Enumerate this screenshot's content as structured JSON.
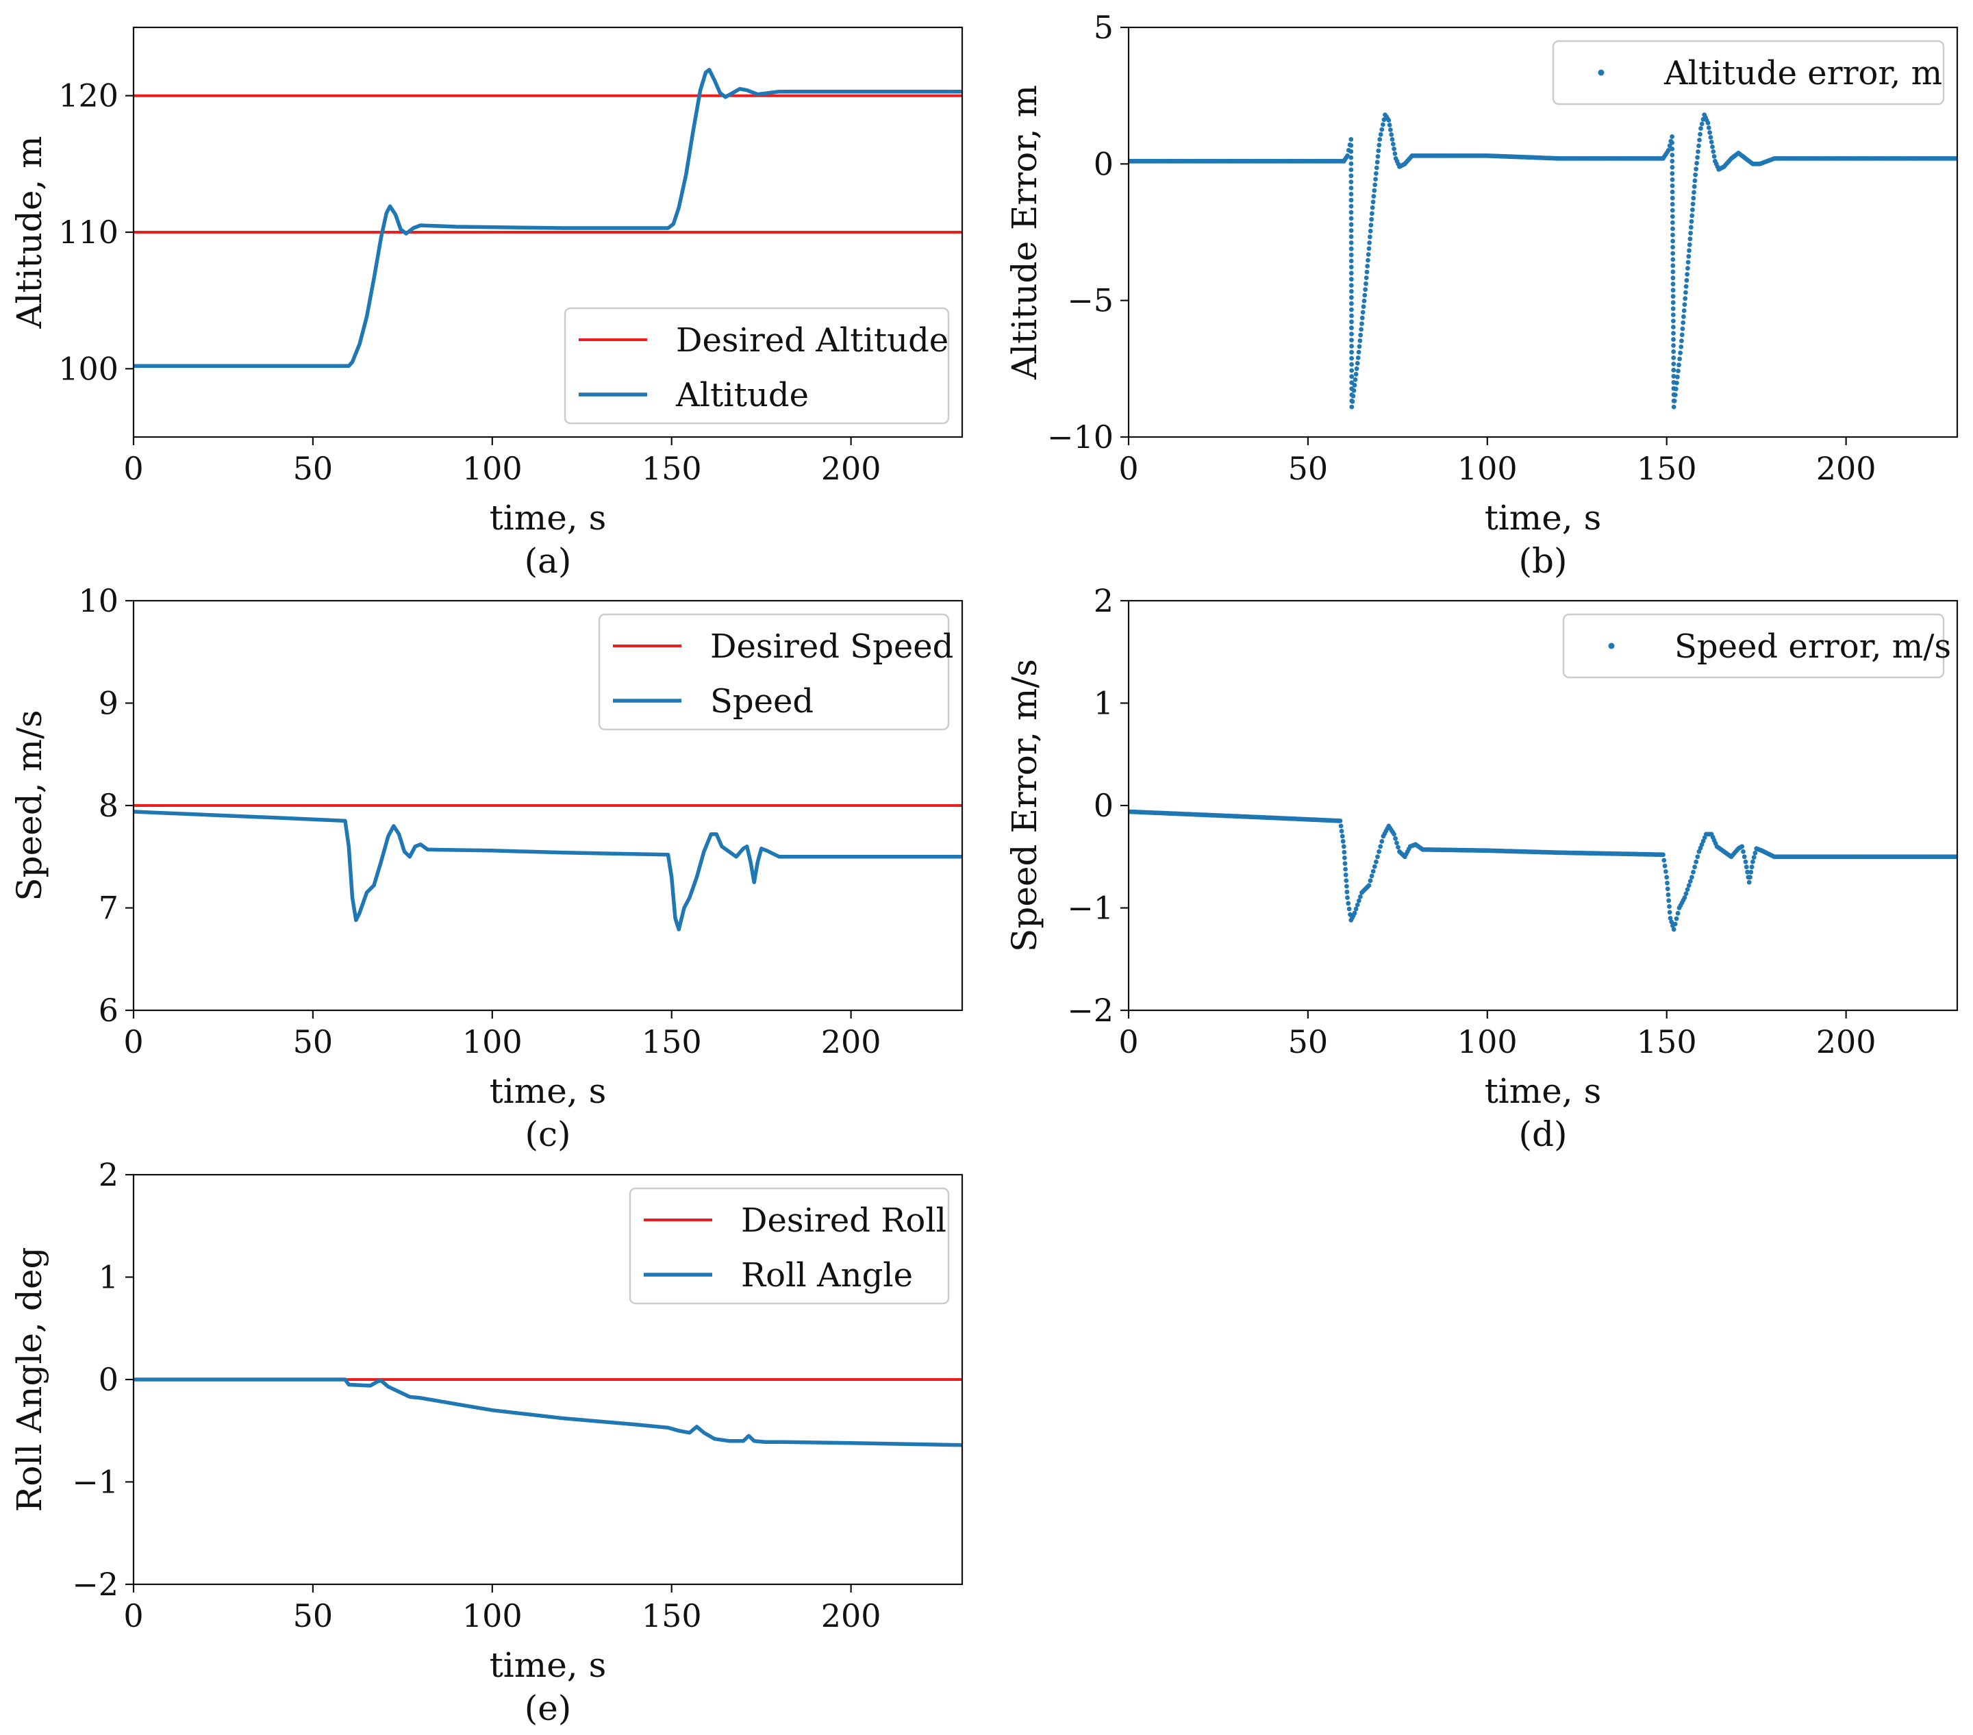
{
  "colors": {
    "desired": "#ee1c1c",
    "actual": "#1f77b4",
    "axis": "#111111",
    "legend_border": "#cccccc"
  },
  "chart_data": [
    {
      "id": "a",
      "caption": "(a)",
      "type": "line",
      "xlabel": "time, s",
      "ylabel": "Altitude, m",
      "xlim": [
        0,
        231
      ],
      "ylim": [
        95,
        125
      ],
      "xticks": [
        0,
        50,
        100,
        150,
        200
      ],
      "yticks": [
        100,
        110,
        120
      ],
      "grid": false,
      "legend_position": "lower-right",
      "series": [
        {
          "name": "Desired Altitude",
          "style": "line",
          "color": "desired",
          "points": [
            [
              0,
              110
            ],
            [
              231,
              110
            ]
          ]
        },
        {
          "name": "Desired Altitude",
          "style": "line",
          "color": "desired",
          "legend": false,
          "points": [
            [
              0,
              120
            ],
            [
              231,
              120
            ]
          ]
        },
        {
          "name": "Altitude",
          "style": "line",
          "color": "actual",
          "points": [
            [
              0,
              100.2
            ],
            [
              60,
              100.2
            ],
            [
              61,
              100.5
            ],
            [
              63,
              101.8
            ],
            [
              65,
              103.8
            ],
            [
              67,
              106.6
            ],
            [
              69,
              109.6
            ],
            [
              70.5,
              111.4
            ],
            [
              71.5,
              111.9
            ],
            [
              73,
              111.3
            ],
            [
              74.5,
              110.2
            ],
            [
              76,
              109.9
            ],
            [
              78,
              110.3
            ],
            [
              80,
              110.5
            ],
            [
              90,
              110.4
            ],
            [
              120,
              110.3
            ],
            [
              149,
              110.3
            ],
            [
              150.5,
              110.6
            ],
            [
              152,
              111.8
            ],
            [
              154,
              114.2
            ],
            [
              156,
              117.4
            ],
            [
              158,
              120.4
            ],
            [
              159.5,
              121.7
            ],
            [
              160.5,
              121.9
            ],
            [
              162,
              121.1
            ],
            [
              163.5,
              120.2
            ],
            [
              165,
              119.9
            ],
            [
              167,
              120.2
            ],
            [
              169,
              120.5
            ],
            [
              171,
              120.4
            ],
            [
              174,
              120.1
            ],
            [
              177,
              120.2
            ],
            [
              180,
              120.3
            ],
            [
              231,
              120.3
            ]
          ]
        }
      ]
    },
    {
      "id": "b",
      "caption": "(b)",
      "type": "scatter",
      "xlabel": "time, s",
      "ylabel": "Altitude Error, m",
      "xlim": [
        0,
        231
      ],
      "ylim": [
        -10,
        5
      ],
      "xticks": [
        0,
        50,
        100,
        150,
        200
      ],
      "yticks": [
        -10,
        -5,
        0,
        5
      ],
      "grid": false,
      "legend_position": "top-right",
      "series": [
        {
          "name": "Altitude error, m",
          "style": "dots",
          "color": "actual",
          "points": [
            [
              0,
              0.1
            ],
            [
              30,
              0.1
            ],
            [
              60,
              0.1
            ],
            [
              61,
              0.3
            ],
            [
              62,
              0.9
            ],
            [
              62.2,
              -8.9
            ],
            [
              64,
              -7.1
            ],
            [
              66,
              -4.6
            ],
            [
              68,
              -1.6
            ],
            [
              70,
              0.9
            ],
            [
              71.5,
              1.8
            ],
            [
              72.5,
              1.6
            ],
            [
              73.5,
              0.9
            ],
            [
              74.5,
              0.2
            ],
            [
              75.5,
              -0.1
            ],
            [
              77,
              0.0
            ],
            [
              79,
              0.3
            ],
            [
              80,
              0.3
            ],
            [
              90,
              0.3
            ],
            [
              100,
              0.3
            ],
            [
              120,
              0.2
            ],
            [
              149,
              0.2
            ],
            [
              150.5,
              0.5
            ],
            [
              151.5,
              1.0
            ],
            [
              152,
              -8.9
            ],
            [
              154,
              -6.7
            ],
            [
              156,
              -3.6
            ],
            [
              158,
              -0.4
            ],
            [
              159.5,
              1.3
            ],
            [
              160.5,
              1.8
            ],
            [
              161.5,
              1.5
            ],
            [
              162.5,
              0.8
            ],
            [
              163.5,
              0.1
            ],
            [
              164.5,
              -0.2
            ],
            [
              166,
              -0.1
            ],
            [
              168,
              0.2
            ],
            [
              170,
              0.4
            ],
            [
              172,
              0.2
            ],
            [
              174,
              0.0
            ],
            [
              176,
              0.0
            ],
            [
              178,
              0.1
            ],
            [
              180,
              0.2
            ],
            [
              200,
              0.2
            ],
            [
              231,
              0.2
            ]
          ]
        }
      ]
    },
    {
      "id": "c",
      "caption": "(c)",
      "type": "line",
      "xlabel": "time, s",
      "ylabel": "Speed, m/s",
      "xlim": [
        0,
        231
      ],
      "ylim": [
        6,
        10
      ],
      "xticks": [
        0,
        50,
        100,
        150,
        200
      ],
      "yticks": [
        6,
        7,
        8,
        9,
        10
      ],
      "grid": false,
      "legend_position": "top-right",
      "series": [
        {
          "name": "Desired Speed",
          "style": "line",
          "color": "desired",
          "points": [
            [
              0,
              8
            ],
            [
              231,
              8
            ]
          ]
        },
        {
          "name": "Speed",
          "style": "line",
          "color": "actual",
          "points": [
            [
              0,
              7.94
            ],
            [
              20,
              7.91
            ],
            [
              40,
              7.88
            ],
            [
              59,
              7.85
            ],
            [
              60,
              7.6
            ],
            [
              61,
              7.1
            ],
            [
              62,
              6.88
            ],
            [
              63,
              6.95
            ],
            [
              65,
              7.15
            ],
            [
              67,
              7.22
            ],
            [
              69,
              7.45
            ],
            [
              71,
              7.7
            ],
            [
              72.5,
              7.8
            ],
            [
              74,
              7.72
            ],
            [
              75.5,
              7.55
            ],
            [
              77,
              7.5
            ],
            [
              78.5,
              7.6
            ],
            [
              80,
              7.62
            ],
            [
              82,
              7.57
            ],
            [
              100,
              7.56
            ],
            [
              120,
              7.54
            ],
            [
              149,
              7.52
            ],
            [
              150,
              7.3
            ],
            [
              151,
              6.9
            ],
            [
              152,
              6.79
            ],
            [
              153.5,
              7.0
            ],
            [
              155,
              7.1
            ],
            [
              157,
              7.3
            ],
            [
              159,
              7.55
            ],
            [
              161,
              7.72
            ],
            [
              162.5,
              7.72
            ],
            [
              164,
              7.6
            ],
            [
              166,
              7.55
            ],
            [
              168,
              7.5
            ],
            [
              170,
              7.58
            ],
            [
              171,
              7.6
            ],
            [
              172,
              7.45
            ],
            [
              173,
              7.25
            ],
            [
              174,
              7.45
            ],
            [
              175,
              7.58
            ],
            [
              176.5,
              7.56
            ],
            [
              180,
              7.5
            ],
            [
              200,
              7.5
            ],
            [
              231,
              7.5
            ]
          ]
        }
      ]
    },
    {
      "id": "d",
      "caption": "(d)",
      "type": "scatter",
      "xlabel": "time, s",
      "ylabel": "Speed Error, m/s",
      "xlim": [
        0,
        231
      ],
      "ylim": [
        -2,
        2
      ],
      "xticks": [
        0,
        50,
        100,
        150,
        200
      ],
      "yticks": [
        -2,
        -1,
        0,
        1,
        2
      ],
      "grid": false,
      "legend_position": "top-right",
      "series": [
        {
          "name": "Speed error, m/s",
          "style": "dots",
          "color": "actual",
          "points": [
            [
              0,
              -0.06
            ],
            [
              20,
              -0.09
            ],
            [
              40,
              -0.12
            ],
            [
              59,
              -0.15
            ],
            [
              60,
              -0.4
            ],
            [
              61,
              -0.9
            ],
            [
              62,
              -1.12
            ],
            [
              63,
              -1.05
            ],
            [
              65,
              -0.85
            ],
            [
              67,
              -0.78
            ],
            [
              69,
              -0.55
            ],
            [
              71,
              -0.3
            ],
            [
              72.5,
              -0.2
            ],
            [
              74,
              -0.28
            ],
            [
              75.5,
              -0.45
            ],
            [
              77,
              -0.5
            ],
            [
              78.5,
              -0.4
            ],
            [
              80,
              -0.38
            ],
            [
              82,
              -0.43
            ],
            [
              100,
              -0.44
            ],
            [
              120,
              -0.46
            ],
            [
              149,
              -0.48
            ],
            [
              150,
              -0.7
            ],
            [
              151,
              -1.1
            ],
            [
              152,
              -1.21
            ],
            [
              153.5,
              -1.0
            ],
            [
              155,
              -0.9
            ],
            [
              157,
              -0.7
            ],
            [
              159,
              -0.45
            ],
            [
              161,
              -0.28
            ],
            [
              162.5,
              -0.28
            ],
            [
              164,
              -0.4
            ],
            [
              166,
              -0.45
            ],
            [
              168,
              -0.5
            ],
            [
              170,
              -0.42
            ],
            [
              171,
              -0.4
            ],
            [
              172,
              -0.55
            ],
            [
              173,
              -0.75
            ],
            [
              174,
              -0.55
            ],
            [
              175,
              -0.42
            ],
            [
              176.5,
              -0.44
            ],
            [
              180,
              -0.5
            ],
            [
              200,
              -0.5
            ],
            [
              231,
              -0.5
            ]
          ]
        }
      ]
    },
    {
      "id": "e",
      "caption": "(e)",
      "type": "line",
      "xlabel": "time, s",
      "ylabel": "Roll Angle, deg",
      "xlim": [
        0,
        231
      ],
      "ylim": [
        -2,
        2
      ],
      "xticks": [
        0,
        50,
        100,
        150,
        200
      ],
      "yticks": [
        -2,
        -1,
        0,
        1,
        2
      ],
      "grid": false,
      "legend_position": "top-right",
      "series": [
        {
          "name": "Desired Roll",
          "style": "line",
          "color": "desired",
          "points": [
            [
              0,
              0
            ],
            [
              231,
              0
            ]
          ]
        },
        {
          "name": "Roll Angle",
          "style": "line",
          "color": "actual",
          "points": [
            [
              0,
              0
            ],
            [
              59,
              0
            ],
            [
              60,
              -0.05
            ],
            [
              66,
              -0.06
            ],
            [
              68,
              -0.02
            ],
            [
              69,
              -0.01
            ],
            [
              71,
              -0.07
            ],
            [
              74,
              -0.12
            ],
            [
              77,
              -0.17
            ],
            [
              80,
              -0.18
            ],
            [
              90,
              -0.24
            ],
            [
              100,
              -0.3
            ],
            [
              120,
              -0.38
            ],
            [
              140,
              -0.44
            ],
            [
              149,
              -0.47
            ],
            [
              152,
              -0.5
            ],
            [
              155,
              -0.52
            ],
            [
              157,
              -0.46
            ],
            [
              159,
              -0.52
            ],
            [
              162,
              -0.58
            ],
            [
              166,
              -0.6
            ],
            [
              170,
              -0.6
            ],
            [
              171.5,
              -0.55
            ],
            [
              173,
              -0.6
            ],
            [
              176,
              -0.61
            ],
            [
              180,
              -0.61
            ],
            [
              200,
              -0.62
            ],
            [
              231,
              -0.64
            ]
          ]
        }
      ]
    }
  ]
}
